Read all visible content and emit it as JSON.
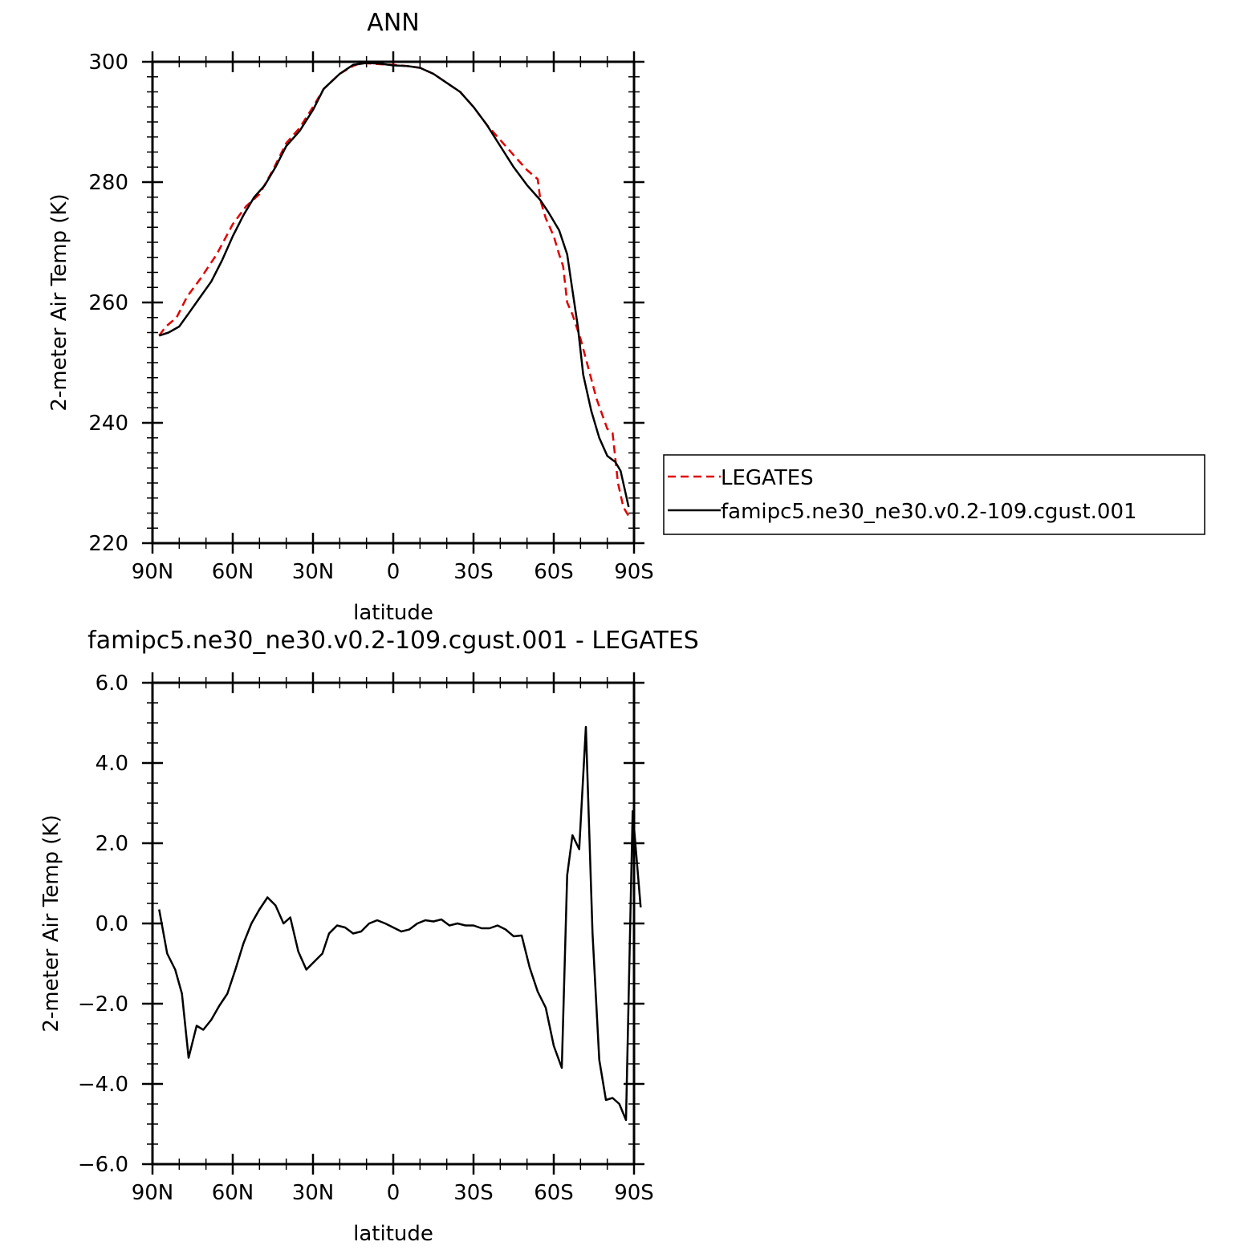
{
  "chart_data": [
    {
      "type": "line",
      "title": "ANN",
      "xlabel": "latitude",
      "ylabel": "2-meter Air Temp (K)",
      "xlim": [
        -90,
        90
      ],
      "ylim": [
        220,
        300
      ],
      "x_ticks": [
        {
          "value": -90,
          "label": "90N"
        },
        {
          "value": -60,
          "label": "60N"
        },
        {
          "value": -30,
          "label": "30N"
        },
        {
          "value": 0,
          "label": "0"
        },
        {
          "value": 30,
          "label": "30S"
        },
        {
          "value": 60,
          "label": "60S"
        },
        {
          "value": 90,
          "label": "90S"
        }
      ],
      "y_ticks": [
        {
          "value": 220,
          "label": "220"
        },
        {
          "value": 240,
          "label": "240"
        },
        {
          "value": 260,
          "label": "260"
        },
        {
          "value": 280,
          "label": "280"
        },
        {
          "value": 300,
          "label": "300"
        }
      ],
      "legend": {
        "position": "right"
      },
      "series": [
        {
          "name": "LEGATES",
          "color": "#e00000",
          "dash": true,
          "points": [
            [
              -87.5,
              254.5
            ],
            [
              -85,
              256
            ],
            [
              -81,
              257.5
            ],
            [
              -77,
              261
            ],
            [
              -72,
              264
            ],
            [
              -66,
              268
            ],
            [
              -60,
              273
            ],
            [
              -55,
              276
            ],
            [
              -50,
              278
            ],
            [
              -45,
              282
            ],
            [
              -40,
              286.5
            ],
            [
              -35,
              289
            ],
            [
              -30,
              292.5
            ],
            [
              -26,
              295.5
            ],
            [
              -20,
              298
            ],
            [
              -15,
              299.3
            ],
            [
              -12,
              299.8
            ],
            [
              -8,
              299.7
            ],
            [
              -5,
              299.6
            ],
            [
              0,
              299.5
            ],
            [
              5,
              299.3
            ],
            [
              10,
              299
            ],
            [
              15,
              298
            ],
            [
              20,
              296.5
            ],
            [
              25,
              295
            ],
            [
              30,
              292.5
            ],
            [
              35,
              289.5
            ],
            [
              40,
              287
            ],
            [
              45,
              284.5
            ],
            [
              50,
              282
            ],
            [
              54,
              280.5
            ],
            [
              55,
              277
            ],
            [
              57,
              274
            ],
            [
              60,
              271
            ],
            [
              62,
              268
            ],
            [
              63.5,
              266
            ],
            [
              65,
              260
            ],
            [
              67,
              258
            ],
            [
              70,
              254
            ],
            [
              73,
              249
            ],
            [
              76,
              244
            ],
            [
              80,
              239
            ],
            [
              82,
              238.3
            ],
            [
              84,
              230
            ],
            [
              86,
              226
            ],
            [
              88,
              224.5
            ]
          ]
        },
        {
          "name": "famipc5.ne30_ne30.v0.2-109.cgust.001",
          "color": "#000000",
          "dash": false,
          "points": [
            [
              -87.5,
              254.5
            ],
            [
              -84,
              255
            ],
            [
              -80,
              256
            ],
            [
              -76,
              258.5
            ],
            [
              -72,
              261
            ],
            [
              -68,
              263.5
            ],
            [
              -64,
              267
            ],
            [
              -60,
              271
            ],
            [
              -56,
              274.5
            ],
            [
              -52,
              277.5
            ],
            [
              -48,
              279.5
            ],
            [
              -44,
              282.5
            ],
            [
              -40,
              286
            ],
            [
              -35,
              288.5
            ],
            [
              -30,
              292
            ],
            [
              -26,
              295.5
            ],
            [
              -20,
              298
            ],
            [
              -15,
              299.5
            ],
            [
              -10,
              299.8
            ],
            [
              -5,
              299.7
            ],
            [
              0,
              299.4
            ],
            [
              5,
              299.3
            ],
            [
              10,
              299
            ],
            [
              15,
              298
            ],
            [
              20,
              296.5
            ],
            [
              25,
              295
            ],
            [
              30,
              292.5
            ],
            [
              35,
              289.5
            ],
            [
              40,
              286
            ],
            [
              45,
              282.5
            ],
            [
              50,
              279.5
            ],
            [
              55,
              277
            ],
            [
              58,
              275
            ],
            [
              62,
              272
            ],
            [
              65,
              268
            ],
            [
              67,
              262
            ],
            [
              69,
              256
            ],
            [
              71,
              248
            ],
            [
              74,
              242
            ],
            [
              77,
              237.5
            ],
            [
              80,
              234.5
            ],
            [
              83,
              233.5
            ],
            [
              85,
              232
            ],
            [
              87,
              228
            ],
            [
              88,
              226
            ]
          ]
        }
      ]
    },
    {
      "type": "line",
      "title": "famipc5.ne30_ne30.v0.2-109.cgust.001 - LEGATES",
      "xlabel": "latitude",
      "ylabel": "2-meter Air Temp (K)",
      "xlim": [
        -90,
        90
      ],
      "ylim": [
        -6,
        6
      ],
      "x_ticks": [
        {
          "value": -90,
          "label": "90N"
        },
        {
          "value": -60,
          "label": "60N"
        },
        {
          "value": -30,
          "label": "30N"
        },
        {
          "value": 0,
          "label": "0"
        },
        {
          "value": 30,
          "label": "30S"
        },
        {
          "value": 60,
          "label": "60S"
        },
        {
          "value": 90,
          "label": "90S"
        }
      ],
      "y_ticks": [
        {
          "value": -6,
          "label": "−6.0"
        },
        {
          "value": -4,
          "label": "−4.0"
        },
        {
          "value": -2,
          "label": "−2.0"
        },
        {
          "value": 0,
          "label": "0.0"
        },
        {
          "value": 2,
          "label": "2.0"
        },
        {
          "value": 4,
          "label": "4.0"
        },
        {
          "value": 6,
          "label": "6.0"
        }
      ],
      "series": [
        {
          "color": "#000000",
          "dash": false,
          "points": [
            [
              -87.5,
              0.35
            ],
            [
              -84.5,
              -0.75
            ],
            [
              -81.5,
              -1.15
            ],
            [
              -79,
              -1.75
            ],
            [
              -76.5,
              -3.35
            ],
            [
              -73.5,
              -2.55
            ],
            [
              -71,
              -2.65
            ],
            [
              -68,
              -2.4
            ],
            [
              -65,
              -2.05
            ],
            [
              -62,
              -1.75
            ],
            [
              -59,
              -1.15
            ],
            [
              -56,
              -0.5
            ],
            [
              -53,
              0.0
            ],
            [
              -50,
              0.35
            ],
            [
              -47,
              0.65
            ],
            [
              -44,
              0.45
            ],
            [
              -41,
              0.0
            ],
            [
              -38.5,
              0.15
            ],
            [
              -35.5,
              -0.7
            ],
            [
              -32.5,
              -1.15
            ],
            [
              -29.5,
              -0.95
            ],
            [
              -26.5,
              -0.75
            ],
            [
              -24,
              -0.25
            ],
            [
              -21,
              -0.05
            ],
            [
              -18,
              -0.1
            ],
            [
              -15,
              -0.25
            ],
            [
              -12,
              -0.2
            ],
            [
              -9,
              0.0
            ],
            [
              -6,
              0.08
            ],
            [
              -3,
              0.0
            ],
            [
              0,
              -0.1
            ],
            [
              3,
              -0.2
            ],
            [
              6,
              -0.15
            ],
            [
              9,
              0.0
            ],
            [
              12,
              0.08
            ],
            [
              15,
              0.05
            ],
            [
              18,
              0.1
            ],
            [
              21,
              -0.05
            ],
            [
              24,
              0.0
            ],
            [
              27,
              -0.05
            ],
            [
              30,
              -0.05
            ],
            [
              33,
              -0.12
            ],
            [
              36,
              -0.12
            ],
            [
              39,
              -0.05
            ],
            [
              42,
              -0.15
            ],
            [
              45,
              -0.32
            ],
            [
              48,
              -0.3
            ],
            [
              51,
              -1.1
            ],
            [
              54,
              -1.7
            ],
            [
              57,
              -2.1
            ],
            [
              60,
              -3.05
            ],
            [
              63,
              -3.6
            ],
            [
              65,
              1.2
            ],
            [
              67,
              2.2
            ],
            [
              69.5,
              1.85
            ],
            [
              72,
              4.9
            ],
            [
              74.5,
              -0.25
            ],
            [
              77,
              -3.4
            ],
            [
              79.5,
              -4.4
            ],
            [
              82,
              -4.35
            ],
            [
              84.5,
              -4.5
            ],
            [
              87,
              -4.9
            ],
            [
              89.5,
              2.8
            ],
            [
              92.5,
              0.4
            ]
          ]
        }
      ]
    }
  ]
}
